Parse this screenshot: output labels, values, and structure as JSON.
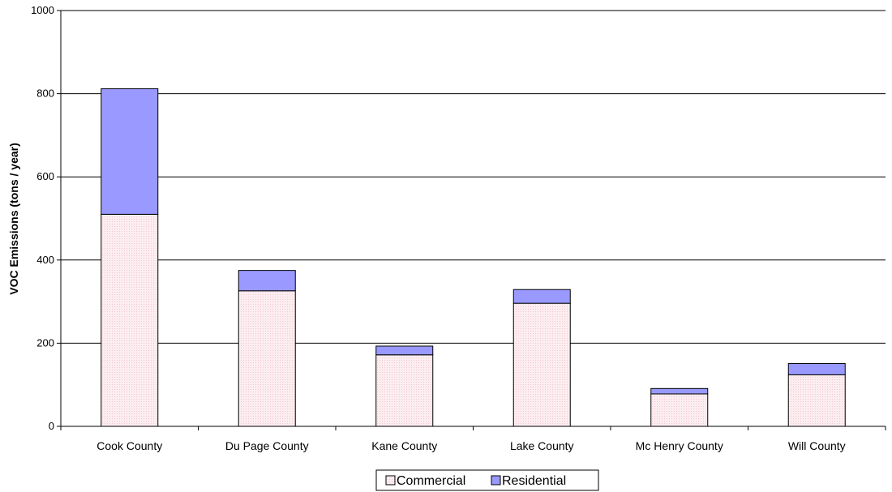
{
  "chart_data": {
    "type": "bar",
    "stacked": true,
    "title": "",
    "xlabel": "",
    "ylabel": "VOC Emissions (tons / year)",
    "ylim": [
      0,
      1000
    ],
    "yticks": [
      0,
      200,
      400,
      600,
      800,
      1000
    ],
    "grid": true,
    "legend_position": "bottom",
    "categories": [
      "Cook County",
      "Du Page County",
      "Kane County",
      "Lake County",
      "Mc Henry County",
      "Will County"
    ],
    "series": [
      {
        "name": "Commercial",
        "color": "#fbe8ec",
        "values": [
          510,
          326,
          172,
          296,
          78,
          124
        ]
      },
      {
        "name": "Residential",
        "color": "#9999ff",
        "values": [
          302,
          49,
          21,
          33,
          13,
          27
        ]
      }
    ]
  }
}
